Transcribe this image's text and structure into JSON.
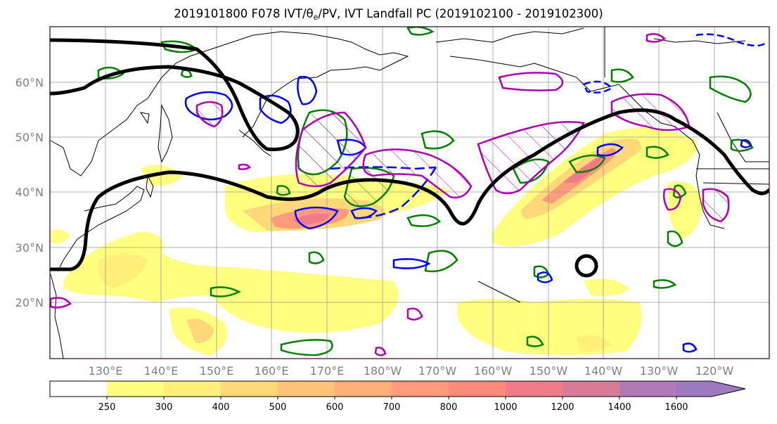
{
  "title": {
    "prefix": "2019101800 F078 IVT/",
    "theta": "θ",
    "theta_sub": "e",
    "suffix": "/PV, IVT Landfall PC (2019102100 - 2019102300)"
  },
  "axes": {
    "lat_labels": [
      "60°N",
      "50°N",
      "40°N",
      "30°N",
      "20°N"
    ],
    "lon_labels": [
      "130°E",
      "140°E",
      "150°E",
      "160°E",
      "170°E",
      "180°W",
      "170°W",
      "160°W",
      "150°W",
      "140°W",
      "130°W",
      "120°W"
    ]
  },
  "colorbar": {
    "levels": [
      "250",
      "300",
      "400",
      "500",
      "600",
      "700",
      "800",
      "1000",
      "1200",
      "1400",
      "1600"
    ],
    "colors": [
      "#ffffff",
      "#ffff80",
      "#fff07a",
      "#ffd87a",
      "#ffc478",
      "#ffb078",
      "#ff9a7a",
      "#ff8a7a",
      "#f07a88",
      "#d87a98",
      "#b07ab8",
      "#a07ac0"
    ],
    "extend": "max"
  },
  "legend_colors": {
    "ivt_fill": "#ffe66b",
    "pv_contour": "#000000",
    "blue_contour": "#0000ff",
    "green_contour": "#008000",
    "magenta_contour": "#b000b0"
  }
}
